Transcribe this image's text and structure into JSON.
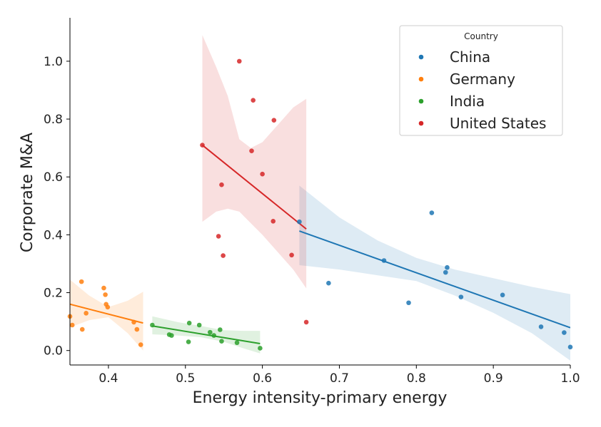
{
  "chart_data": {
    "type": "scatter",
    "title": "",
    "xlabel": "Energy intensity-primary energy",
    "ylabel": "Corporate M&A",
    "xlim": [
      0.35,
      1.0
    ],
    "ylim": [
      -0.05,
      1.15
    ],
    "xticks": [
      0.4,
      0.5,
      0.6,
      0.7,
      0.8,
      0.9,
      1.0
    ],
    "yticks": [
      0.0,
      0.2,
      0.4,
      0.6,
      0.8,
      1.0
    ],
    "xtick_labels": [
      "0.4",
      "0.5",
      "0.6",
      "0.7",
      "0.8",
      "0.9",
      "1.0"
    ],
    "ytick_labels": [
      "0.0",
      "0.2",
      "0.4",
      "0.6",
      "0.8",
      "1.0"
    ],
    "grid": false,
    "legend": {
      "title": "Country",
      "placement": "top-right"
    },
    "series": [
      {
        "name": "China",
        "color": "#1f77b4",
        "points": [
          [
            0.648,
            0.445
          ],
          [
            0.686,
            0.233
          ],
          [
            0.758,
            0.311
          ],
          [
            0.79,
            0.165
          ],
          [
            0.82,
            0.476
          ],
          [
            0.838,
            0.27
          ],
          [
            0.84,
            0.287
          ],
          [
            0.858,
            0.185
          ],
          [
            0.912,
            0.192
          ],
          [
            0.962,
            0.082
          ],
          [
            0.992,
            0.062
          ],
          [
            1.0,
            0.012
          ]
        ],
        "fit": {
          "x": [
            0.648,
            1.0
          ],
          "y": [
            0.413,
            0.079
          ]
        },
        "ci": {
          "x": [
            0.648,
            0.7,
            0.75,
            0.8,
            0.85,
            0.9,
            0.95,
            1.0
          ],
          "upper": [
            0.57,
            0.46,
            0.38,
            0.32,
            0.28,
            0.25,
            0.22,
            0.195
          ],
          "lower": [
            0.295,
            0.28,
            0.26,
            0.24,
            0.19,
            0.13,
            0.06,
            -0.035
          ]
        }
      },
      {
        "name": "Germany",
        "color": "#ff7f0e",
        "points": [
          [
            0.35,
            0.118
          ],
          [
            0.353,
            0.088
          ],
          [
            0.365,
            0.238
          ],
          [
            0.366,
            0.073
          ],
          [
            0.371,
            0.129
          ],
          [
            0.394,
            0.216
          ],
          [
            0.396,
            0.193
          ],
          [
            0.397,
            0.16
          ],
          [
            0.399,
            0.15
          ],
          [
            0.433,
            0.098
          ],
          [
            0.437,
            0.073
          ],
          [
            0.442,
            0.02
          ]
        ],
        "fit": {
          "x": [
            0.35,
            0.445
          ],
          "y": [
            0.16,
            0.095
          ]
        },
        "ci": {
          "x": [
            0.35,
            0.375,
            0.4,
            0.425,
            0.445
          ],
          "upper": [
            0.245,
            0.19,
            0.15,
            0.172,
            0.203
          ],
          "lower": [
            0.08,
            0.105,
            0.115,
            0.06,
            0.0
          ]
        }
      },
      {
        "name": "India",
        "color": "#2ca02c",
        "points": [
          [
            0.457,
            0.088
          ],
          [
            0.479,
            0.055
          ],
          [
            0.482,
            0.052
          ],
          [
            0.504,
            0.03
          ],
          [
            0.505,
            0.095
          ],
          [
            0.518,
            0.088
          ],
          [
            0.532,
            0.063
          ],
          [
            0.537,
            0.052
          ],
          [
            0.545,
            0.072
          ],
          [
            0.547,
            0.032
          ],
          [
            0.567,
            0.027
          ],
          [
            0.597,
            0.008
          ]
        ],
        "fit": {
          "x": [
            0.457,
            0.597
          ],
          "y": [
            0.085,
            0.024
          ]
        },
        "ci": {
          "x": [
            0.457,
            0.49,
            0.52,
            0.55,
            0.575,
            0.597
          ],
          "upper": [
            0.118,
            0.098,
            0.085,
            0.07,
            0.068,
            0.068
          ],
          "lower": [
            0.056,
            0.052,
            0.046,
            0.03,
            0.008,
            -0.01
          ]
        }
      },
      {
        "name": "United States",
        "color": "#d62728",
        "points": [
          [
            0.522,
            0.71
          ],
          [
            0.543,
            0.395
          ],
          [
            0.547,
            0.573
          ],
          [
            0.549,
            0.328
          ],
          [
            0.57,
            1.0
          ],
          [
            0.586,
            0.69
          ],
          [
            0.588,
            0.865
          ],
          [
            0.6,
            0.61
          ],
          [
            0.614,
            0.447
          ],
          [
            0.615,
            0.796
          ],
          [
            0.638,
            0.33
          ],
          [
            0.657,
            0.098
          ]
        ],
        "fit": {
          "x": [
            0.522,
            0.657
          ],
          "y": [
            0.71,
            0.42
          ]
        },
        "ci": {
          "x": [
            0.522,
            0.54,
            0.555,
            0.57,
            0.585,
            0.6,
            0.62,
            0.64,
            0.657
          ],
          "upper": [
            1.09,
            0.98,
            0.88,
            0.73,
            0.7,
            0.72,
            0.78,
            0.84,
            0.87
          ],
          "lower": [
            0.445,
            0.48,
            0.49,
            0.48,
            0.44,
            0.4,
            0.34,
            0.28,
            0.215
          ]
        }
      }
    ]
  }
}
